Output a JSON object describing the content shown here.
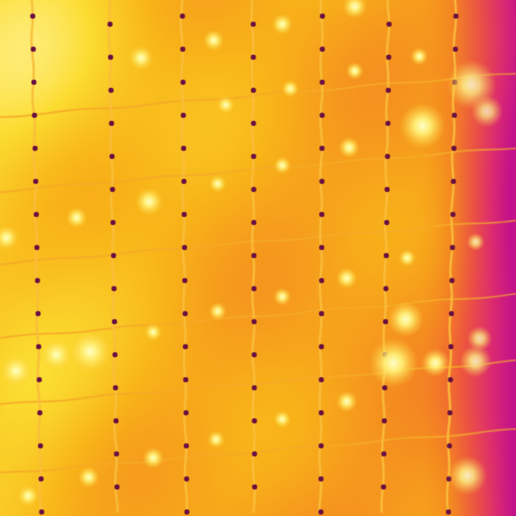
{
  "image": {
    "kind": "thermal infrared photograph",
    "palette": [
      "#c0108a",
      "#e0306a",
      "#f05a3a",
      "#f48a20",
      "#f8b418",
      "#fbdc30",
      "#fff08a"
    ],
    "hot_color": "#fff08a",
    "cold_color": "#c0108a",
    "wire_color": "#f2a020",
    "dot_color": "#6a1040"
  }
}
